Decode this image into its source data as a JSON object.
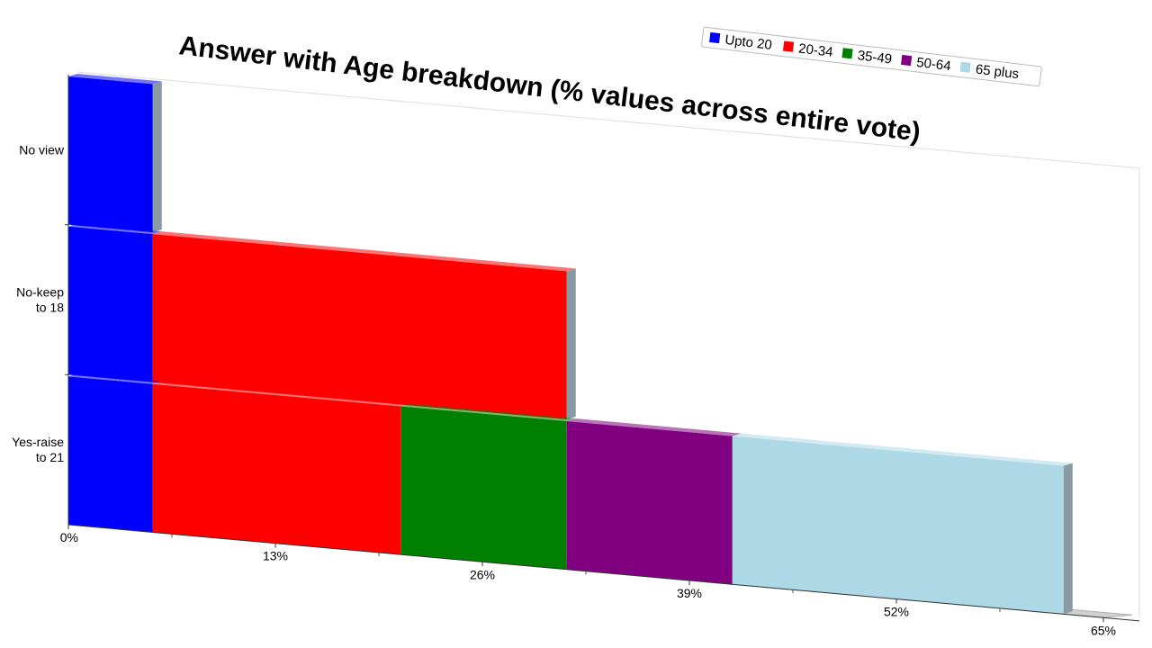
{
  "chart_data": {
    "type": "bar",
    "orientation": "horizontal",
    "stacked": true,
    "perspective_3d": true,
    "title": "Answer with Age breakdown (% values across entire vote)",
    "xlabel": "",
    "ylabel": "",
    "xlim": [
      0,
      65
    ],
    "tick_labels": [
      "0%",
      "13%",
      "26%",
      "39%",
      "52%",
      "65%"
    ],
    "categories": [
      "No view",
      "No-keep to 18",
      "Yes-raise to 21"
    ],
    "category_lines": [
      [
        "No view"
      ],
      [
        "No-keep",
        "to 18"
      ],
      [
        "Yes-raise",
        "to 21"
      ]
    ],
    "series": [
      {
        "name": "Upto 20",
        "color": "#0000ff",
        "values": [
          5.3,
          5.3,
          5.3
        ]
      },
      {
        "name": "20-34",
        "color": "#ff0000",
        "values": [
          0,
          26.0,
          15.6
        ]
      },
      {
        "name": "35-49",
        "color": "#008000",
        "values": [
          0,
          0,
          10.4
        ]
      },
      {
        "name": "50-64",
        "color": "#800080",
        "values": [
          0,
          0,
          10.4
        ]
      },
      {
        "name": "65 plus",
        "color": "#add8e6",
        "values": [
          0,
          0,
          20.8
        ]
      }
    ],
    "legend_position": "top-right",
    "grid": false
  }
}
